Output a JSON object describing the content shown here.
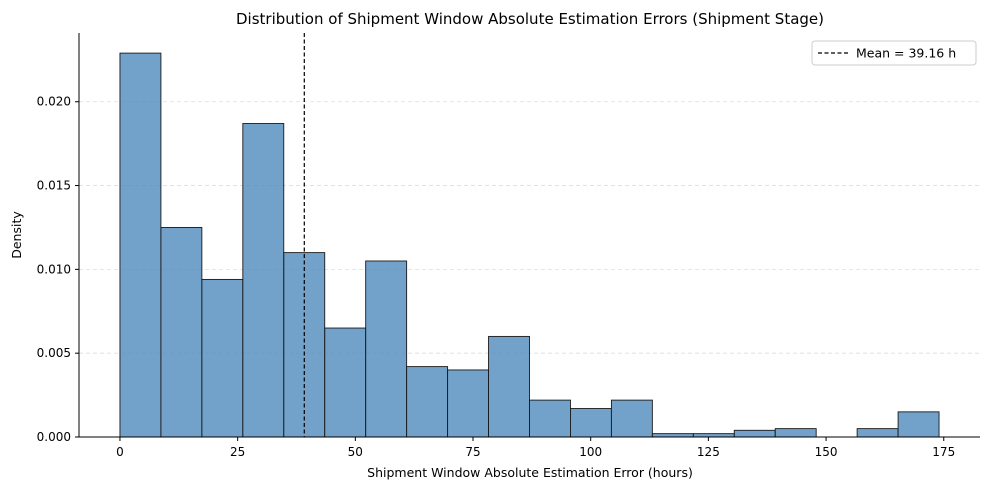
{
  "chart_data": {
    "type": "bar",
    "title": "Distribution of Shipment Window Absolute Estimation Errors (Shipment Stage)",
    "xlabel": "Shipment Window Absolute Estimation Error (hours)",
    "ylabel": "Density",
    "xlim": [
      -8.7,
      182.7
    ],
    "ylim": [
      0,
      0.0241
    ],
    "xticks": [
      {
        "value": 0,
        "label": "0"
      },
      {
        "value": 25,
        "label": "25"
      },
      {
        "value": 50,
        "label": "50"
      },
      {
        "value": 75,
        "label": "75"
      },
      {
        "value": 100,
        "label": "100"
      },
      {
        "value": 125,
        "label": "125"
      },
      {
        "value": 150,
        "label": "150"
      },
      {
        "value": 175,
        "label": "175"
      }
    ],
    "yticks": [
      {
        "value": 0,
        "label": "0.000"
      },
      {
        "value": 0.005,
        "label": "0.005"
      },
      {
        "value": 0.01,
        "label": "0.010"
      },
      {
        "value": 0.015,
        "label": "0.015"
      },
      {
        "value": 0.02,
        "label": "0.020"
      }
    ],
    "grid": "y-dashed",
    "bins": {
      "start": 0,
      "end": 174,
      "densities": [
        0.0229,
        0.0125,
        0.0094,
        0.0187,
        0.011,
        0.0065,
        0.0105,
        0.0042,
        0.004,
        0.006,
        0.0022,
        0.0017,
        0.0022,
        0.0002,
        0.0002,
        0.0004,
        0.0005,
        0.0,
        0.0005,
        0.0015
      ]
    },
    "mean_line": {
      "value": 39.16,
      "label": "Mean = 39.16 h"
    },
    "legend_position": "top-right",
    "colors": {
      "bar_fill": "#4f8abc",
      "bar_edge": "#1a1a1a",
      "mean_line": "#000000"
    }
  }
}
